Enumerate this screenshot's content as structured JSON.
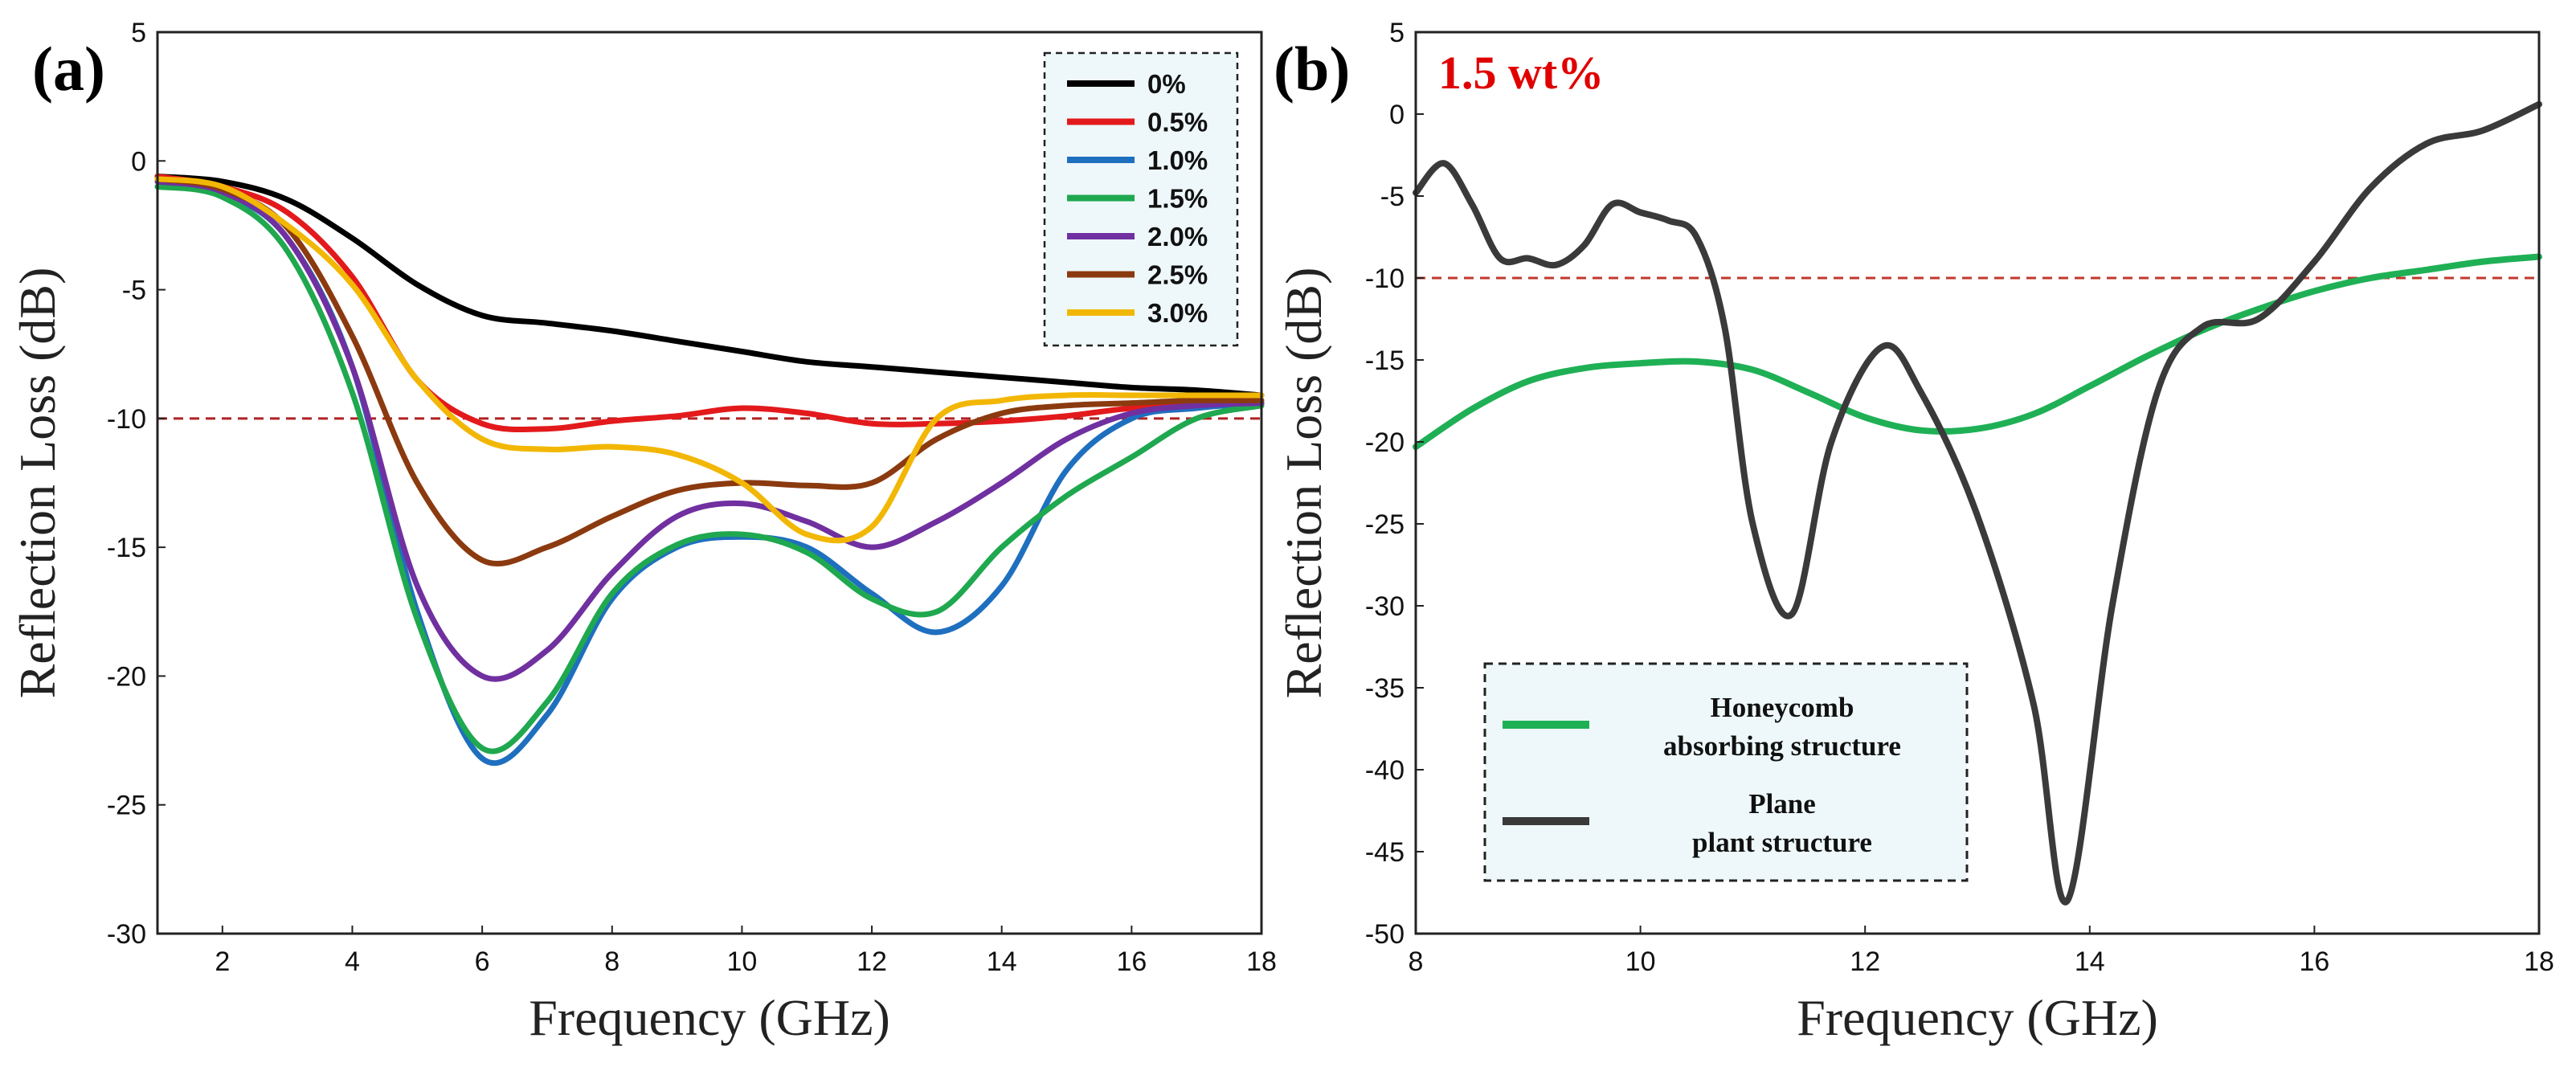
{
  "chart_data": [
    {
      "panel": "(a)",
      "type": "line",
      "xlabel": "Frequency (GHz)",
      "ylabel": "Reflection Loss (dB)",
      "xlim": [
        1,
        18
      ],
      "ylim": [
        -30,
        5
      ],
      "xticks": [
        2,
        4,
        6,
        8,
        10,
        12,
        14,
        16,
        18
      ],
      "yticks": [
        5,
        0,
        -5,
        -10,
        -15,
        -20,
        -25,
        -30
      ],
      "reference_line": {
        "y": -10,
        "color": "#b22222",
        "style": "dashed"
      },
      "legend_position": "top-right",
      "series": [
        {
          "name": "0%",
          "color": "#000000",
          "x": [
            1,
            2,
            3,
            4,
            5,
            6,
            7,
            8,
            9,
            10,
            11,
            12,
            13,
            14,
            15,
            16,
            17,
            18
          ],
          "y": [
            -0.6,
            -0.8,
            -1.5,
            -3.0,
            -4.8,
            -6.0,
            -6.3,
            -6.6,
            -7.0,
            -7.4,
            -7.8,
            -8.0,
            -8.2,
            -8.4,
            -8.6,
            -8.8,
            -8.9,
            -9.1
          ]
        },
        {
          "name": "0.5%",
          "color": "#e31a1c",
          "x": [
            1,
            2,
            3,
            4,
            5,
            6,
            7,
            8,
            9,
            10,
            11,
            12,
            13,
            14,
            15,
            16,
            17,
            18
          ],
          "y": [
            -0.6,
            -1.0,
            -2.0,
            -4.5,
            -8.5,
            -10.2,
            -10.4,
            -10.1,
            -9.9,
            -9.6,
            -9.8,
            -10.2,
            -10.2,
            -10.1,
            -9.9,
            -9.6,
            -9.5,
            -9.4
          ]
        },
        {
          "name": "1.0%",
          "color": "#1f6fbf",
          "x": [
            1,
            2,
            3,
            4,
            5,
            6,
            7,
            8,
            9,
            10,
            11,
            12,
            13,
            14,
            15,
            16,
            17,
            18
          ],
          "y": [
            -1.0,
            -1.3,
            -3.0,
            -8.0,
            -17.5,
            -23.2,
            -21.5,
            -17.0,
            -15.0,
            -14.6,
            -15.0,
            -16.8,
            -18.3,
            -16.5,
            -12.0,
            -10.0,
            -9.6,
            -9.4
          ]
        },
        {
          "name": "1.5%",
          "color": "#1fa84f",
          "x": [
            1,
            2,
            3,
            4,
            5,
            6,
            7,
            8,
            9,
            10,
            11,
            12,
            13,
            14,
            15,
            16,
            17,
            18
          ],
          "y": [
            -1.0,
            -1.4,
            -3.5,
            -9.0,
            -17.8,
            -22.8,
            -21.0,
            -16.8,
            -14.9,
            -14.5,
            -15.2,
            -17.0,
            -17.5,
            -15.0,
            -13.0,
            -11.5,
            -10.0,
            -9.5
          ]
        },
        {
          "name": "2.0%",
          "color": "#7030a0",
          "x": [
            1,
            2,
            3,
            4,
            5,
            6,
            7,
            8,
            9,
            10,
            11,
            12,
            13,
            14,
            15,
            16,
            17,
            18
          ],
          "y": [
            -0.8,
            -1.2,
            -3.0,
            -8.0,
            -16.5,
            -20.0,
            -19.0,
            -16.0,
            -13.8,
            -13.3,
            -14.0,
            -15.0,
            -14.0,
            -12.5,
            -10.8,
            -9.8,
            -9.5,
            -9.4
          ]
        },
        {
          "name": "2.5%",
          "color": "#8b3a0f",
          "x": [
            1,
            2,
            3,
            4,
            5,
            6,
            7,
            8,
            9,
            10,
            11,
            12,
            13,
            14,
            15,
            16,
            17,
            18
          ],
          "y": [
            -0.7,
            -1.1,
            -2.6,
            -6.8,
            -12.5,
            -15.5,
            -15.0,
            -13.8,
            -12.8,
            -12.5,
            -12.6,
            -12.5,
            -10.8,
            -9.8,
            -9.5,
            -9.4,
            -9.3,
            -9.3
          ]
        },
        {
          "name": "3.0%",
          "color": "#f2b705",
          "x": [
            1,
            2,
            3,
            4,
            5,
            6,
            7,
            8,
            9,
            10,
            11,
            12,
            13,
            14,
            15,
            16,
            17,
            18
          ],
          "y": [
            -0.7,
            -1.0,
            -2.5,
            -4.8,
            -8.5,
            -10.8,
            -11.2,
            -11.1,
            -11.4,
            -12.5,
            -14.5,
            -14.2,
            -10.0,
            -9.3,
            -9.1,
            -9.1,
            -9.1,
            -9.1
          ]
        }
      ]
    },
    {
      "panel": "(b)",
      "type": "line",
      "xlabel": "Frequency (GHz)",
      "ylabel": "Reflection Loss (dB)",
      "xlim": [
        8,
        18
      ],
      "ylim": [
        -50,
        5
      ],
      "xticks": [
        8,
        10,
        12,
        14,
        16,
        18
      ],
      "yticks": [
        5,
        0,
        -5,
        -10,
        -15,
        -20,
        -25,
        -30,
        -35,
        -40,
        -45,
        -50
      ],
      "reference_line": {
        "y": -10,
        "color": "#c0392b",
        "style": "dashed"
      },
      "annotation": {
        "text": "1.5 wt%",
        "color": "#e00000"
      },
      "legend_position": "bottom-left",
      "series": [
        {
          "name": "Honeycomb absorbing structure",
          "name_lines": [
            "Honeycomb",
            "absorbing structure"
          ],
          "color": "#1fb055",
          "x": [
            8,
            8.5,
            9,
            9.5,
            10,
            10.5,
            11,
            11.5,
            12,
            12.5,
            13,
            13.5,
            14,
            14.5,
            15,
            15.5,
            16,
            16.5,
            17,
            17.5,
            18
          ],
          "y": [
            -20.3,
            -18.0,
            -16.3,
            -15.5,
            -15.2,
            -15.1,
            -15.6,
            -17.0,
            -18.5,
            -19.3,
            -19.2,
            -18.3,
            -16.6,
            -14.8,
            -13.2,
            -11.9,
            -10.8,
            -10.0,
            -9.5,
            -9.0,
            -8.7
          ]
        },
        {
          "name": "Plane plant structure",
          "name_lines": [
            "Plane",
            "plant structure"
          ],
          "color": "#3a3a3a",
          "x": [
            8,
            8.25,
            8.5,
            8.75,
            9,
            9.25,
            9.5,
            9.75,
            10,
            10.25,
            10.5,
            10.75,
            11,
            11.35,
            11.7,
            12.15,
            12.5,
            13,
            13.5,
            13.8,
            14.2,
            14.6,
            15,
            15.5,
            16,
            16.5,
            17,
            17.5,
            18
          ],
          "y": [
            -4.8,
            -3.0,
            -5.5,
            -8.8,
            -8.8,
            -9.2,
            -8.0,
            -5.5,
            -6.0,
            -6.5,
            -7.5,
            -13.0,
            -25.0,
            -30.5,
            -20.0,
            -14.2,
            -17.0,
            -24.5,
            -36.0,
            -48.0,
            -30.0,
            -17.0,
            -13.0,
            -12.5,
            -9.0,
            -4.5,
            -1.8,
            -1.0,
            0.6
          ]
        }
      ]
    }
  ]
}
